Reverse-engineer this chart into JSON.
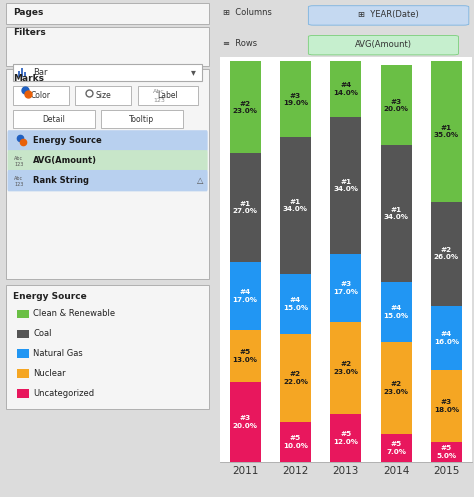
{
  "years": [
    "2011",
    "2012",
    "2013",
    "2014",
    "2015"
  ],
  "segments": {
    "Uncategorized": {
      "color": "#e8175d",
      "values": [
        20.0,
        10.0,
        12.0,
        7.0,
        5.0
      ],
      "ranks": [
        "#3",
        "#5",
        "#5",
        "#5",
        "#5"
      ]
    },
    "Nuclear": {
      "color": "#f5a623",
      "values": [
        13.0,
        22.0,
        23.0,
        23.0,
        18.0
      ],
      "ranks": [
        "#5",
        "#2",
        "#2",
        "#2",
        "#3"
      ]
    },
    "Natural Gas": {
      "color": "#2196F3",
      "values": [
        17.0,
        15.0,
        17.0,
        15.0,
        16.0
      ],
      "ranks": [
        "#4",
        "#4",
        "#3",
        "#4",
        "#4"
      ]
    },
    "Coal": {
      "color": "#555555",
      "values": [
        27.0,
        34.0,
        34.0,
        34.0,
        26.0
      ],
      "ranks": [
        "#1",
        "#1",
        "#1",
        "#1",
        "#2"
      ]
    },
    "Clean & Renewable": {
      "color": "#6abf45",
      "values": [
        23.0,
        19.0,
        14.0,
        20.0,
        35.0
      ],
      "ranks": [
        "#2",
        "#3",
        "#4",
        "#3",
        "#1"
      ]
    }
  },
  "legend_items": [
    {
      "label": "Clean & Renewable",
      "color": "#6abf45"
    },
    {
      "label": "Coal",
      "color": "#555555"
    },
    {
      "label": "Natural Gas",
      "color": "#2196F3"
    },
    {
      "label": "Nuclear",
      "color": "#f5a623"
    },
    {
      "label": "Uncategorized",
      "color": "#e8175d"
    }
  ],
  "chart_bg": "#ffffff",
  "panel_bg": "#dcdcdc",
  "panel_inner_bg": "#f5f5f5",
  "header_col_color": "#c5d9f1",
  "header_row_color": "#c6efce",
  "text_colors": {
    "Coal": "white",
    "Uncategorized": "white",
    "Natural Gas": "white",
    "Nuclear": "#1a1a1a",
    "Clean & Renewable": "#1a1a1a"
  }
}
